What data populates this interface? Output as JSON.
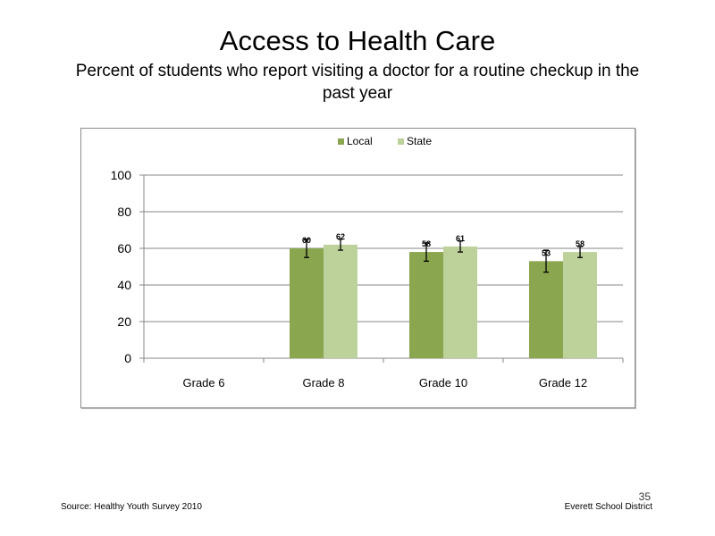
{
  "slide": {
    "title": "Access to Health Care",
    "subtitle": "Percent of students who report visiting a doctor for a routine checkup in the past year",
    "source": "Source: Healthy Youth Survey 2010",
    "organization": "Everett School District",
    "page_number": "35"
  },
  "chart_data": {
    "type": "bar",
    "title": "",
    "xlabel": "",
    "ylabel": "",
    "categories": [
      "Grade 6",
      "Grade 8",
      "Grade 10",
      "Grade 12"
    ],
    "series": [
      {
        "name": "Local",
        "color": "#8aa64f",
        "values": [
          null,
          60,
          58,
          53
        ],
        "labels": [
          "",
          "60",
          "58",
          "53"
        ],
        "error": [
          null,
          5,
          5,
          6
        ]
      },
      {
        "name": "State",
        "color": "#bdd29a",
        "values": [
          null,
          62,
          61,
          58
        ],
        "labels": [
          "",
          "62",
          "61",
          "58"
        ],
        "error": [
          null,
          3,
          3,
          3
        ]
      }
    ],
    "ylim": [
      0,
      100
    ],
    "yticks": [
      "0",
      "20",
      "40",
      "60",
      "80",
      "100"
    ],
    "grid": true,
    "legend_position": "top"
  }
}
